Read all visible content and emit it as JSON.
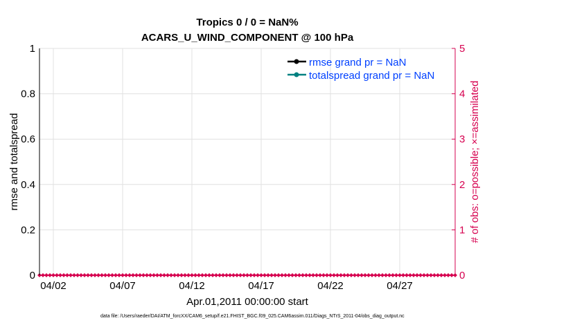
{
  "chart_data": {
    "type": "line",
    "title": [
      "Tropics 0 / 0 = NaN%",
      "ACARS_U_WIND_COMPONENT @ 100 hPa"
    ],
    "xlabel": "Apr.01,2011 00:00:00 start",
    "ylabel_left": "rmse and totalspread",
    "ylabel_right": "# of obs: o=possible; ×=assimilated",
    "xlim": [
      "2011-04-01",
      "2011-05-01"
    ],
    "ylim_left": [
      0,
      1
    ],
    "ylim_right": [
      0,
      5
    ],
    "x_ticks": [
      {
        "date": "2011-04-02",
        "label": "04/02"
      },
      {
        "date": "2011-04-07",
        "label": "04/07"
      },
      {
        "date": "2011-04-12",
        "label": "04/12"
      },
      {
        "date": "2011-04-17",
        "label": "04/17"
      },
      {
        "date": "2011-04-22",
        "label": "04/22"
      },
      {
        "date": "2011-04-27",
        "label": "04/27"
      }
    ],
    "y_ticks_left": [
      "0",
      "0.2",
      "0.4",
      "0.6",
      "0.8",
      "1"
    ],
    "y_ticks_right": [
      "0",
      "1",
      "2",
      "3",
      "4",
      "5"
    ],
    "grid": true,
    "legend_placement": "top-right",
    "series": [
      {
        "name": "rmse grand pr = NaN",
        "color": "#000000",
        "values": []
      },
      {
        "name": "totalspread grand pr = NaN",
        "color": "#008080",
        "values": []
      },
      {
        "color": "#d6004f",
        "interval_hours": 6,
        "value": 0
      }
    ]
  },
  "footer": "data file: /Users/raeder/DAI/ATM_forcXX/CAM6_setup/f.e21.FHIST_BGC.f09_025.CAM6assim.011/Diags_NTrS_2011-04/obs_diag_output.nc",
  "colors": {
    "left_axis": "#000000",
    "right_axis": "#d6004f",
    "legend_text": "#0040ff"
  }
}
